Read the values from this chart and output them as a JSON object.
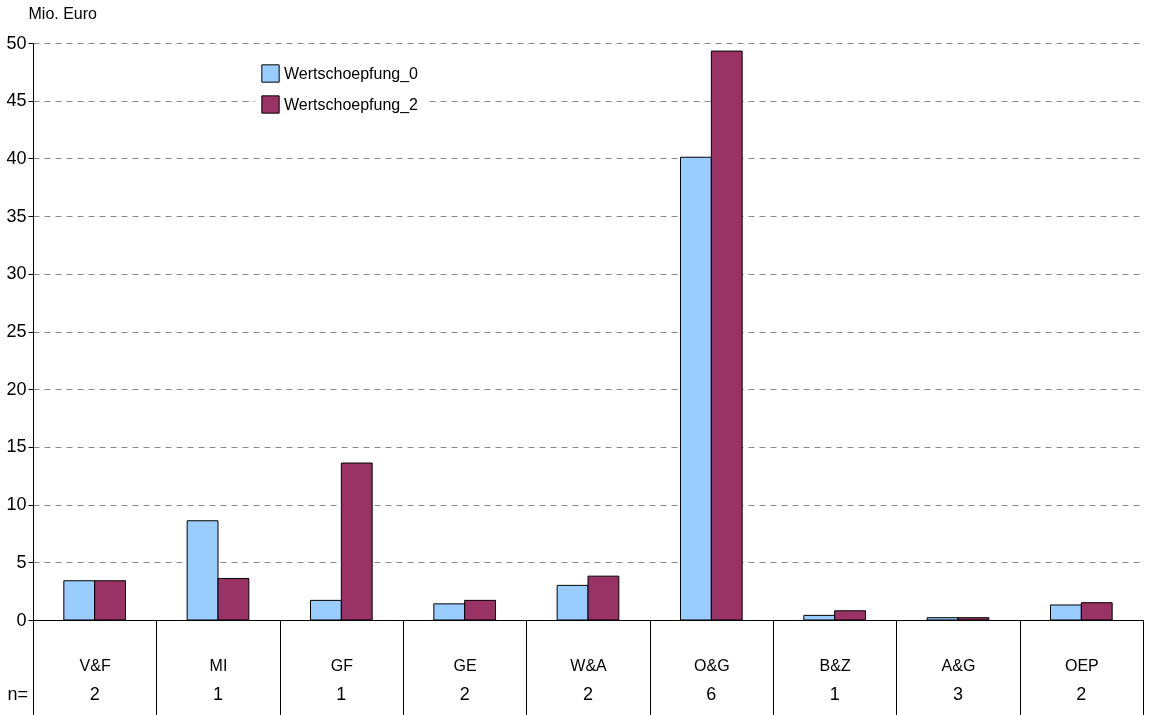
{
  "chart_data": {
    "type": "bar",
    "ylabel": "Mio.  Euro",
    "categories": [
      "V&F",
      "MI",
      "GF",
      "GE",
      "W&A",
      "O&G",
      "B&Z",
      "A&G",
      "OEP"
    ],
    "series": [
      {
        "name": "Wertschoepfung_0",
        "color": "#99ccff",
        "values": [
          3.4,
          8.6,
          1.7,
          1.4,
          3.0,
          40.1,
          0.4,
          0.2,
          1.3
        ]
      },
      {
        "name": "Wertschoepfung_2",
        "color": "#993366",
        "values": [
          3.4,
          3.6,
          13.6,
          1.7,
          3.8,
          49.3,
          0.8,
          0.2,
          1.5
        ]
      }
    ],
    "ylim": [
      0,
      50
    ],
    "yticks": [
      0,
      5,
      10,
      15,
      20,
      25,
      30,
      35,
      40,
      45,
      50
    ],
    "grid": "y",
    "legend": "top left",
    "annotations": [
      "n=",
      "2",
      "1",
      "1",
      "2",
      "2",
      "6",
      "1",
      "3",
      "2"
    ]
  }
}
